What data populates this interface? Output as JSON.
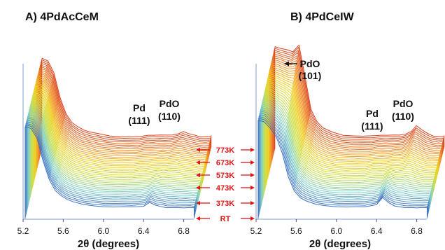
{
  "chart_data": [
    {
      "type": "line",
      "title": "A) 4PdAcCeM",
      "xlabel": "2θ (degrees)",
      "ylabel": "",
      "xlim": [
        5.2,
        6.9
      ],
      "xticks": [
        "5.2",
        "5.6",
        "6.0",
        "6.4",
        "6.8"
      ],
      "trace_count": 42,
      "waterfall_offset": true,
      "color_gradient": [
        "#3c6fc4",
        "#7fd0c8",
        "#c8e04a",
        "#f0d020",
        "#f08a2a",
        "#d8401e"
      ],
      "peak_labels": [
        {
          "name": "Pd",
          "hkl": "(111)",
          "x": 6.28
        },
        {
          "name": "PdO",
          "hkl": "(110)",
          "x": 6.63
        }
      ],
      "x": [
        5.22,
        5.28,
        5.34,
        5.4,
        5.46,
        5.52,
        5.58,
        5.64,
        5.7,
        5.8,
        5.9,
        6.0,
        6.1,
        6.2,
        6.28,
        6.34,
        6.4,
        6.46,
        6.52,
        6.58,
        6.63,
        6.68,
        6.74,
        6.8,
        6.86,
        6.9
      ],
      "series": [
        {
          "values": [
            112,
            110,
            97,
            70,
            48,
            35,
            28,
            24,
            21,
            18,
            16,
            15,
            15,
            15,
            15,
            15,
            16,
            20,
            17,
            15,
            14,
            14,
            14,
            14,
            14,
            14
          ]
        },
        {
          "values": [
            112,
            110,
            95,
            66,
            45,
            33,
            27,
            23,
            21,
            18,
            16,
            15,
            15,
            15,
            16,
            16,
            17,
            18,
            17,
            18,
            18,
            17,
            16,
            15,
            14,
            14
          ]
        },
        {
          "values": [
            110,
            107,
            92,
            63,
            43,
            32,
            27,
            23,
            21,
            18,
            16,
            15,
            15,
            15,
            17,
            17,
            17,
            17,
            17,
            19,
            21,
            19,
            17,
            15,
            15,
            15
          ]
        }
      ]
    },
    {
      "type": "line",
      "title": "B) 4PdCeIW",
      "xlabel": "2θ (degrees)",
      "ylabel": "",
      "xlim": [
        5.2,
        6.9
      ],
      "xticks": [
        "5.2",
        "5.6",
        "6.0",
        "6.4",
        "6.8"
      ],
      "trace_count": 42,
      "waterfall_offset": true,
      "color_gradient": [
        "#3c6fc4",
        "#7fd0c8",
        "#c8e04a",
        "#f0d020",
        "#f08a2a",
        "#d8401e"
      ],
      "peak_labels": [
        {
          "name": "PdO",
          "hkl": "(101)",
          "x": 5.48
        },
        {
          "name": "Pd",
          "hkl": "(111)",
          "x": 6.28
        },
        {
          "name": "PdO",
          "hkl": "(110)",
          "x": 6.63
        }
      ],
      "x": [
        5.22,
        5.28,
        5.34,
        5.4,
        5.46,
        5.52,
        5.58,
        5.64,
        5.7,
        5.8,
        5.9,
        6.0,
        6.1,
        6.2,
        6.28,
        6.34,
        6.4,
        6.46,
        6.52,
        6.58,
        6.63,
        6.68,
        6.74,
        6.8,
        6.86,
        6.9
      ],
      "series": [
        {
          "values": [
            120,
            118,
            110,
            100,
            80,
            52,
            34,
            26,
            22,
            18,
            16,
            15,
            15,
            15,
            15,
            16,
            18,
            26,
            20,
            16,
            15,
            14,
            14,
            14,
            14,
            14
          ]
        },
        {
          "values": [
            122,
            120,
            116,
            112,
            105,
            70,
            42,
            30,
            24,
            19,
            17,
            16,
            16,
            16,
            18,
            18,
            18,
            20,
            19,
            20,
            22,
            20,
            17,
            15,
            15,
            15
          ]
        },
        {
          "values": [
            124,
            122,
            120,
            118,
            126,
            88,
            48,
            33,
            26,
            20,
            17,
            16,
            16,
            16,
            17,
            17,
            17,
            17,
            18,
            22,
            28,
            24,
            19,
            16,
            15,
            15
          ]
        }
      ]
    }
  ],
  "temperatures": [
    "773K",
    "673K",
    "573K",
    "473K",
    "373K",
    "RT"
  ]
}
